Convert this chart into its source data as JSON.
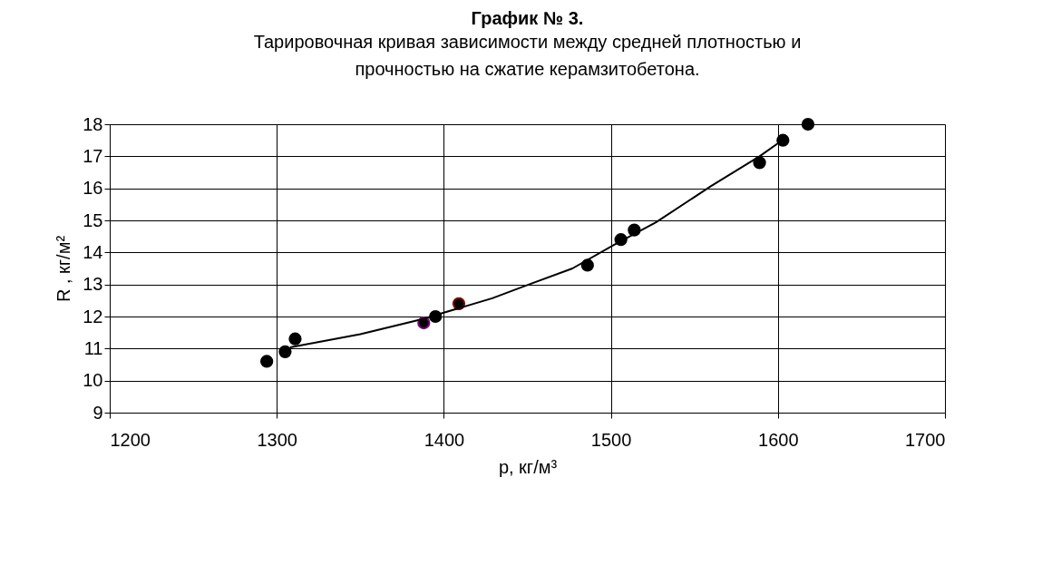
{
  "chart_data": {
    "type": "scatter",
    "title": "График № 3.",
    "subtitle": "Тарировочная кривая зависимости между средней плотностью  и\nпрочностью на сжатие керамзитобетона.",
    "xlabel": "р, кг/м³",
    "ylabel": "R , кг/м²",
    "xlim": [
      1200,
      1700
    ],
    "xticks": [
      1200,
      1300,
      1400,
      1500,
      1600,
      1700
    ],
    "ylim": [
      9,
      18
    ],
    "yticks": [
      9,
      10,
      11,
      12,
      13,
      14,
      15,
      16,
      17,
      18
    ],
    "grid": true,
    "series": [
      {
        "color": "#000000",
        "marker": "circle",
        "x": [
          1294,
          1305,
          1311,
          1388,
          1395,
          1409,
          1486,
          1506,
          1514,
          1589,
          1603,
          1618
        ],
        "values": [
          10.6,
          10.9,
          11.3,
          11.8,
          12.0,
          12.4,
          13.6,
          14.4,
          14.7,
          16.8,
          17.5,
          18.0
        ],
        "colors": [
          "#000000",
          "#000000",
          "#000000",
          "#800080",
          "#000000",
          "#800000",
          "#000000",
          "#000000",
          "#000000",
          "#000000",
          "#000000",
          "#000000"
        ]
      },
      {
        "type": "line",
        "color": "#000000",
        "line_style": "solid",
        "marker": "none",
        "x": [
          1308,
          1350,
          1388,
          1400,
          1429,
          1451,
          1477,
          1502,
          1527,
          1560,
          1589,
          1601
        ],
        "values": [
          11.04,
          11.45,
          11.93,
          12.12,
          12.57,
          13.0,
          13.5,
          14.24,
          14.94,
          16.07,
          17.0,
          17.44
        ]
      }
    ]
  }
}
